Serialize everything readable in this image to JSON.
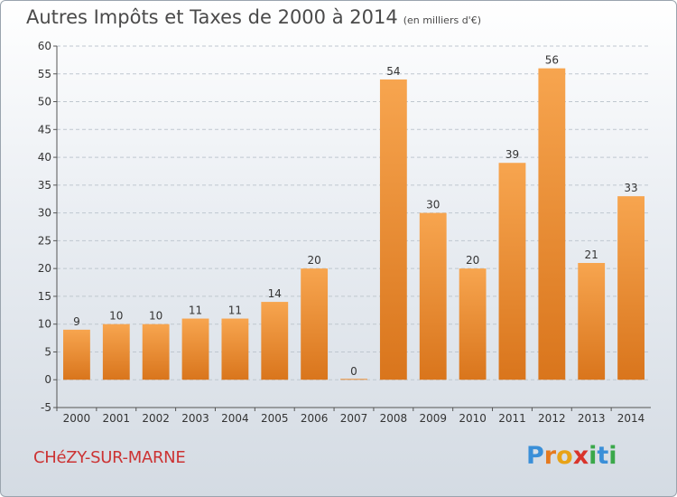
{
  "title": "Autres Impôts et Taxes de 2000 à 2014",
  "unit": "(en milliers d'€)",
  "place": "CHéZY-SUR-MARNE",
  "logo": {
    "letters": [
      "P",
      "r",
      "o",
      "x",
      "i",
      "t",
      "i"
    ],
    "colors": [
      "#3a8fd8",
      "#e57a1f",
      "#e8a317",
      "#d9342b",
      "#3aa84a",
      "#3a8fd8",
      "#3aa84a"
    ]
  },
  "colors": {
    "bar_light": "#f7a54f",
    "bar_dark": "#d9751c",
    "grid": "#bfc7cf",
    "axis": "#555555"
  },
  "chart_data": {
    "type": "bar",
    "categories": [
      "2000",
      "2001",
      "2002",
      "2003",
      "2004",
      "2005",
      "2006",
      "2007",
      "2008",
      "2009",
      "2010",
      "2011",
      "2012",
      "2013",
      "2014"
    ],
    "values": [
      9,
      10,
      10,
      11,
      11,
      14,
      20,
      0,
      54,
      30,
      20,
      39,
      56,
      21,
      33
    ],
    "ylim": [
      -5,
      60
    ],
    "yticks": [
      -5,
      0,
      5,
      10,
      15,
      20,
      25,
      30,
      35,
      40,
      45,
      50,
      55,
      60
    ],
    "grid": true,
    "xlabel": "",
    "ylabel": ""
  }
}
